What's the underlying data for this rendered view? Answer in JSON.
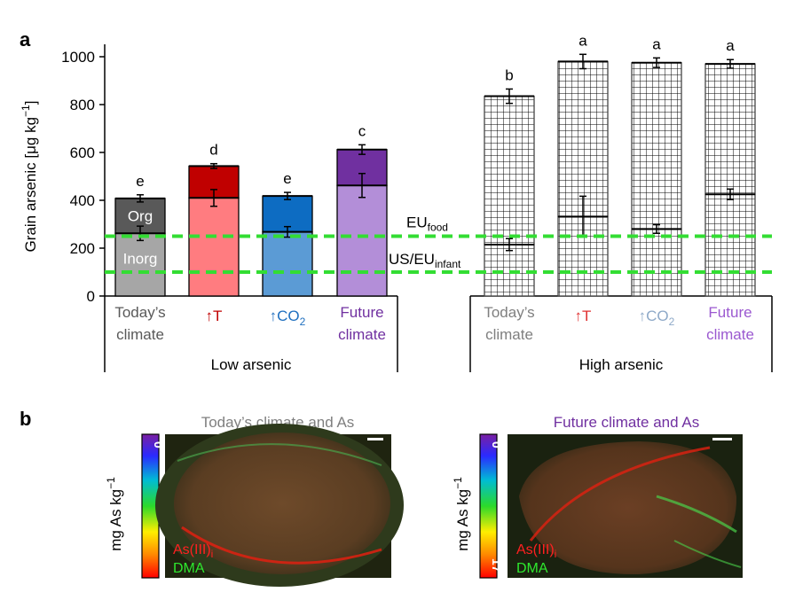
{
  "panel_a": {
    "letter": "a"
  },
  "panel_b": {
    "letter": "b",
    "images": [
      {
        "title": "Today’s climate and As",
        "title_color": "#7f7f7f",
        "colorbar_label": "mg As kg",
        "colorbar_label_sup": "−1",
        "colorbar_top": "0",
        "colorbar_bottom": "",
        "legend_as": "As(III)",
        "legend_as_sub": "i",
        "legend_dma": "DMA"
      },
      {
        "title": "Future climate and As",
        "title_color": "#7030a0",
        "colorbar_label": "mg As kg",
        "colorbar_label_sup": "−1",
        "colorbar_top": "0",
        "colorbar_bottom": "17",
        "legend_as": "As(III)",
        "legend_as_sub": "i",
        "legend_dma": "DMA"
      }
    ]
  },
  "chart_data": {
    "type": "bar",
    "stacked": true,
    "title": "",
    "ylabel": "Grain arsenic [μg kg",
    "ylabel_sup": "−1",
    "ylabel_end": "]",
    "ylim": [
      0,
      1000
    ],
    "yticks": [
      0,
      200,
      400,
      600,
      800,
      1000
    ],
    "segment_labels": {
      "inorganic": "Inorg",
      "organic": "Org"
    },
    "groups": [
      {
        "label": "Low arsenic",
        "pattern": "solid"
      },
      {
        "label": "High arsenic",
        "pattern": "grid"
      }
    ],
    "categories": [
      {
        "group": 0,
        "line1": "Today’s",
        "line2": "climate",
        "color_text": "#595959"
      },
      {
        "group": 0,
        "line1": "↑T",
        "line2": "",
        "color_text": "#c00000"
      },
      {
        "group": 0,
        "line1": "↑CO",
        "line1_sub": "2",
        "line2": "",
        "color_text": "#1f6fbf"
      },
      {
        "group": 0,
        "line1": "Future",
        "line2": "climate",
        "color_text": "#7030a0"
      },
      {
        "group": 1,
        "line1": "Today’s",
        "line2": "climate",
        "color_text": "#7f7f7f"
      },
      {
        "group": 1,
        "line1": "↑T",
        "line2": "",
        "color_text": "#e03030"
      },
      {
        "group": 1,
        "line1": "↑CO",
        "line1_sub": "2",
        "line2": "",
        "color_text": "#8ea9c8"
      },
      {
        "group": 1,
        "line1": "Future",
        "line2": "climate",
        "color_text": "#9b59d0"
      }
    ],
    "series": [
      {
        "name": "Inorganic",
        "values": [
          262,
          410,
          268,
          462,
          215,
          332,
          280,
          425
        ],
        "errors": [
          30,
          35,
          22,
          50,
          25,
          85,
          18,
          22
        ],
        "colors": [
          "#a6a6a6",
          "#ff7c80",
          "#5b9bd5",
          "#b38ed8",
          "#9a9a9a",
          "#ff8a8a",
          "#5b9bd5",
          "#b38ed8"
        ]
      },
      {
        "name": "Organic",
        "values": [
          146,
          133,
          150,
          150,
          620,
          648,
          695,
          545
        ],
        "total_errors": [
          15,
          10,
          15,
          20,
          30,
          30,
          20,
          18
        ],
        "colors": [
          "#595959",
          "#c00000",
          "#0d6cc2",
          "#7030a0",
          "#595959",
          "#c00000",
          "#0d6cc2",
          "#7030a0"
        ]
      }
    ],
    "significance": [
      "e",
      "d",
      "e",
      "c",
      "b",
      "a",
      "a",
      "a"
    ],
    "reference_lines": [
      {
        "label": "EU",
        "label_sub": "food",
        "value": 250,
        "color": "#33dd33"
      },
      {
        "label": "US/EU",
        "label_sub": "infant",
        "value": 100,
        "color": "#33dd33"
      }
    ]
  }
}
